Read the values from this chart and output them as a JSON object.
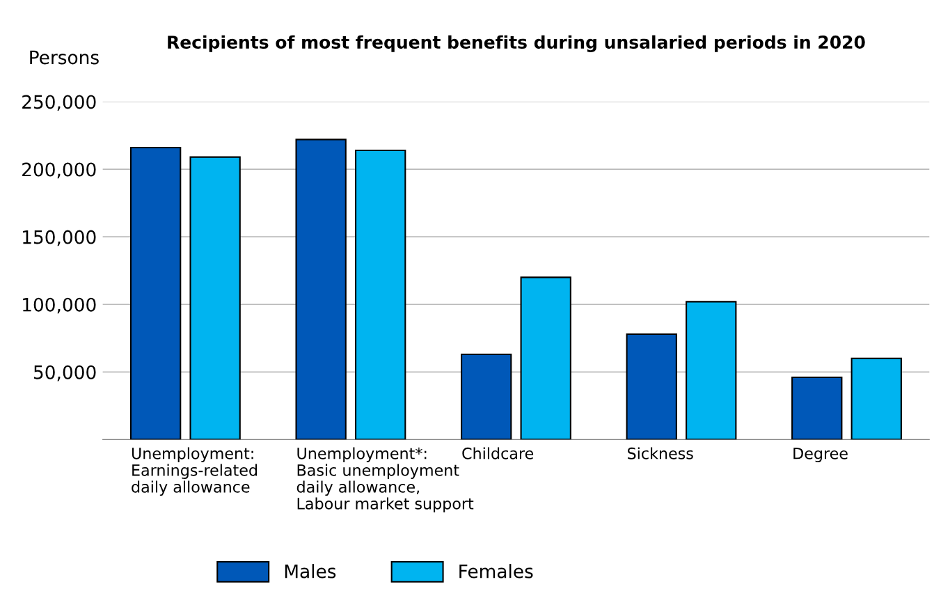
{
  "chart_data": {
    "type": "bar",
    "title": "Recipients of most frequent benefits during unsalaried periods in 2020",
    "ylabel": "Persons",
    "categories": [
      "Unemployment:\nEarnings-related\ndaily allowance",
      "Unemployment*:\nBasic unemployment\ndaily allowance,\nLabour market support",
      "Childcare",
      "Sickness",
      "Degree"
    ],
    "series": [
      {
        "name": "Males",
        "color": "#0058b8",
        "values": [
          216000,
          222000,
          63000,
          78000,
          46000
        ]
      },
      {
        "name": "Females",
        "color": "#00b4f0",
        "values": [
          209000,
          214000,
          120000,
          102000,
          60000
        ]
      }
    ],
    "ylim": [
      0,
      250000
    ],
    "yticks": [
      {
        "value": 50000,
        "label": "50,000"
      },
      {
        "value": 100000,
        "label": "100,000"
      },
      {
        "value": 150000,
        "label": "150,000"
      },
      {
        "value": 200000,
        "label": "200,000"
      },
      {
        "value": 250000,
        "label": "250,000"
      }
    ],
    "grid": "y",
    "legend": "bottom"
  }
}
